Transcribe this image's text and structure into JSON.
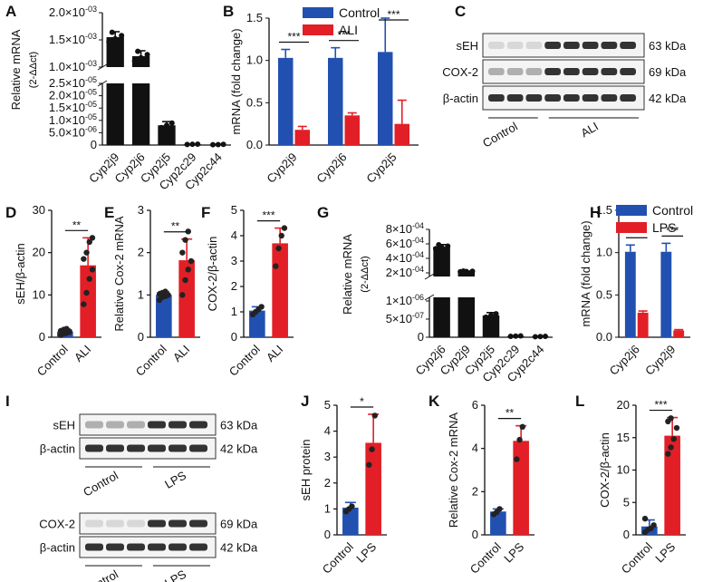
{
  "colors": {
    "control": "#2250b0",
    "treated": "#e21f26",
    "black": "#111111"
  },
  "chart_data": [
    {
      "panel": "A",
      "type": "bar",
      "ylabel": "Relative mRNA",
      "ylabel_unit": "(2-ΔΔct)",
      "categories": [
        "Cyp2j9",
        "Cyp2j6",
        "Cyp2j5",
        "Cyp2c29",
        "Cyp2c44"
      ],
      "values": [
        0.00155,
        0.0012,
        8e-06,
        3e-07,
        2e-07
      ],
      "errors": [
        0.0001,
        0.0001,
        1.5e-06,
        1e-07,
        1e-07
      ],
      "ylim_upper": [
        0.001,
        0.002
      ],
      "ylim_lower": [
        0,
        2.5e-05
      ],
      "yticks_upper": [
        "1.0×10-03",
        "1.5×10-03",
        "2.0×10-03"
      ],
      "yticks_lower": [
        "0",
        "5.0×10-06",
        "1.0×10-05",
        "1.5×10-05",
        "2.0×10-05",
        "2.5×10-05"
      ]
    },
    {
      "panel": "B",
      "type": "bar",
      "ylabel": "mRNA (fold change)",
      "categories": [
        "Cyp2j9",
        "Cyp2j6",
        "Cyp2j5"
      ],
      "series": [
        {
          "name": "Control",
          "values": [
            1.03,
            1.03,
            1.1
          ],
          "errors": [
            0.1,
            0.12,
            0.4
          ]
        },
        {
          "name": "ALI",
          "values": [
            0.18,
            0.35,
            0.25
          ],
          "errors": [
            0.04,
            0.03,
            0.28
          ]
        }
      ],
      "ylim": [
        0,
        1.5
      ],
      "yticks": [
        "0.0",
        "0.5",
        "1.0",
        "1.5"
      ],
      "sig": [
        "***",
        "***",
        "***"
      ]
    },
    {
      "panel": "D",
      "type": "bar",
      "ylabel": "sEH/β-actin",
      "categories": [
        "Control",
        "ALI"
      ],
      "values": [
        1.3,
        17.0
      ],
      "errors": [
        0.6,
        6.5
      ],
      "ylim": [
        0,
        30
      ],
      "yticks": [
        "0",
        "10",
        "20",
        "30"
      ],
      "sig": "**",
      "points": [
        [
          0.5,
          0.8,
          1.0,
          1.2,
          1.5,
          1.8,
          2.0,
          1.4
        ],
        [
          7.8,
          10.5,
          13.8,
          16.0,
          18.5,
          20.0,
          22.5,
          23.5
        ]
      ]
    },
    {
      "panel": "E",
      "type": "bar",
      "ylabel": "Relative Cox-2 mRNA",
      "categories": [
        "Control",
        "ALI"
      ],
      "values": [
        1.0,
        1.82
      ],
      "errors": [
        0.08,
        0.5
      ],
      "ylim": [
        0,
        3
      ],
      "yticks": [
        "0",
        "1",
        "2",
        "3"
      ],
      "sig": "**",
      "points": [
        [
          0.88,
          0.95,
          0.97,
          1.0,
          1.02,
          1.05,
          1.08
        ],
        [
          1.0,
          1.35,
          1.6,
          1.8,
          2.0,
          2.3,
          2.5
        ]
      ]
    },
    {
      "panel": "F",
      "type": "bar",
      "ylabel": "COX-2/β-actin",
      "categories": [
        "Control",
        "ALI"
      ],
      "values": [
        1.05,
        3.7
      ],
      "errors": [
        0.15,
        0.6
      ],
      "ylim": [
        0,
        5
      ],
      "yticks": [
        "0",
        "1",
        "2",
        "3",
        "4",
        "5"
      ],
      "sig": "***",
      "points": [
        [
          0.9,
          1.0,
          1.1,
          1.2
        ],
        [
          2.8,
          3.5,
          4.0,
          4.3
        ]
      ]
    },
    {
      "panel": "G",
      "type": "bar",
      "ylabel": "Relative mRNA",
      "ylabel_unit": "(2-ΔΔct)",
      "categories": [
        "Cyp2j6",
        "Cyp2j9",
        "Cyp2j5",
        "Cyp2c29",
        "Cyp2c44"
      ],
      "values": [
        0.00056,
        0.00022,
        6e-07,
        3e-08,
        2e-08
      ],
      "errors": [
        3e-05,
        5e-06,
        8e-08,
        1e-08,
        1e-08
      ],
      "yticks_upper": [
        "2×10-04",
        "4×10-04",
        "6×10-04",
        "8×10-04"
      ],
      "yticks_lower": [
        "0",
        "5×10-07",
        "1×10-06"
      ]
    },
    {
      "panel": "H",
      "type": "bar",
      "ylabel": "mRNA (fold change)",
      "categories": [
        "Cyp2j6",
        "Cyp2j9"
      ],
      "series": [
        {
          "name": "Control",
          "values": [
            1.01,
            1.01
          ],
          "errors": [
            0.08,
            0.1
          ]
        },
        {
          "name": "LPS",
          "values": [
            0.29,
            0.08
          ],
          "errors": [
            0.02,
            0.01
          ]
        }
      ],
      "ylim": [
        0,
        1.5
      ],
      "yticks": [
        "0.0",
        "0.5",
        "1.0",
        "1.5"
      ],
      "sig": [
        "***",
        "***"
      ]
    },
    {
      "panel": "J",
      "type": "bar",
      "ylabel": "sEH protein",
      "categories": [
        "Control",
        "LPS"
      ],
      "values": [
        1.05,
        3.55
      ],
      "errors": [
        0.2,
        1.1
      ],
      "ylim": [
        0,
        5
      ],
      "yticks": [
        "0",
        "1",
        "2",
        "3",
        "4",
        "5"
      ],
      "sig": "*",
      "points": [
        [
          0.9,
          1.0,
          1.1
        ],
        [
          2.7,
          3.3,
          4.6
        ]
      ]
    },
    {
      "panel": "K",
      "type": "bar",
      "ylabel": "Relative Cox-2 mRNA",
      "categories": [
        "Control",
        "LPS"
      ],
      "values": [
        1.08,
        4.35
      ],
      "errors": [
        0.12,
        0.7
      ],
      "ylim": [
        0,
        6
      ],
      "yticks": [
        "0",
        "2",
        "4",
        "6"
      ],
      "sig": "**",
      "points": [
        [
          0.95,
          1.05,
          1.2
        ],
        [
          3.5,
          4.4,
          5.0
        ]
      ]
    },
    {
      "panel": "L",
      "type": "bar",
      "ylabel": "COX-2/β-actin",
      "categories": [
        "Control",
        "LPS"
      ],
      "values": [
        1.3,
        15.3
      ],
      "errors": [
        1.0,
        2.8
      ],
      "ylim": [
        0,
        20
      ],
      "yticks": [
        "0",
        "5",
        "10",
        "15",
        "20"
      ],
      "sig": "***",
      "points": [
        [
          0.4,
          0.8,
          1.0,
          1.5,
          2.5
        ],
        [
          12.5,
          13.5,
          14.8,
          16.5,
          17.5,
          18.0
        ]
      ]
    }
  ],
  "blots": {
    "C": {
      "labels": [
        "sEH",
        "COX-2",
        "β-actin"
      ],
      "kda": [
        "63 kDa",
        "69 kDa",
        "42 kDa"
      ],
      "groups": [
        "Control",
        "ALI"
      ]
    },
    "I_top": {
      "labels": [
        "sEH",
        "β-actin"
      ],
      "kda": [
        "63 kDa",
        "42 kDa"
      ],
      "groups": [
        "Control",
        "LPS"
      ]
    },
    "I_bottom": {
      "labels": [
        "COX-2",
        "β-actin"
      ],
      "kda": [
        "69 kDa",
        "42 kDa"
      ],
      "groups": [
        "Control",
        "LPS"
      ]
    }
  },
  "panel_letters": [
    "A",
    "B",
    "C",
    "D",
    "E",
    "F",
    "G",
    "H",
    "I",
    "J",
    "K",
    "L"
  ]
}
